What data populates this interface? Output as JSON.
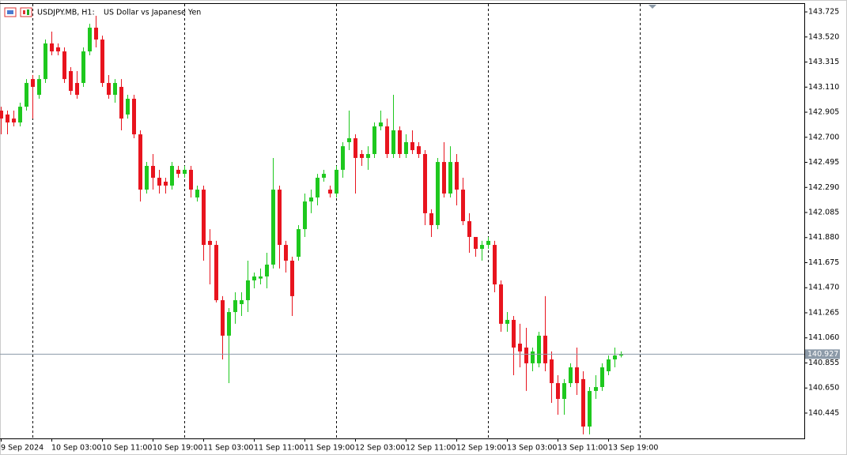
{
  "chart_data": {
    "type": "candlestick",
    "title": "USDJPY.MB, H1:",
    "subtitle": "US Dollar vs Japanese Yen",
    "categories": [
      "9 Sep 2024",
      null,
      null,
      null,
      null,
      null,
      null,
      null,
      "10 Sep 03:00",
      null,
      null,
      null,
      null,
      null,
      null,
      null,
      "10 Sep 11:00",
      null,
      null,
      null,
      null,
      null,
      null,
      null,
      "10 Sep 19:00",
      null,
      null,
      null,
      null,
      null,
      null,
      null,
      "11 Sep 03:00",
      null,
      null,
      null,
      null,
      null,
      null,
      null,
      "11 Sep 11:00",
      null,
      null,
      null,
      null,
      null,
      null,
      null,
      "11 Sep 19:00",
      null,
      null,
      null,
      null,
      null,
      null,
      null,
      "12 Sep 03:00",
      null,
      null,
      null,
      null,
      null,
      null,
      null,
      "12 Sep 11:00",
      null,
      null,
      null,
      null,
      null,
      null,
      null,
      "12 Sep 19:00",
      null,
      null,
      null,
      null,
      null,
      null,
      null,
      "13 Sep 03:00",
      null,
      null,
      null,
      null,
      null,
      null,
      null,
      "13 Sep 11:00",
      null,
      null,
      null,
      null,
      null,
      null,
      null,
      "13 Sep 19:00",
      null,
      null
    ],
    "open": [
      142.918,
      142.886,
      142.853,
      142.821,
      142.95,
      143.176,
      143.047,
      143.176,
      143.467,
      143.435,
      143.402,
      143.241,
      143.144,
      143.144,
      143.402,
      143.596,
      143.499,
      143.144,
      143.047,
      143.112,
      142.886,
      143.015,
      142.724,
      142.272,
      142.466,
      142.369,
      142.337,
      142.305,
      142.434,
      142.401,
      142.434,
      142.208,
      142.272,
      141.853,
      141.82,
      141.368,
      141.078,
      141.271,
      141.336,
      141.368,
      141.53,
      141.545,
      141.562,
      141.659,
      142.272,
      141.82,
      141.691,
      141.723,
      141.949,
      142.175,
      142.208,
      142.369,
      142.272,
      142.24,
      142.434,
      142.66,
      142.692,
      142.563,
      142.531,
      142.563,
      142.789,
      142.789,
      142.563,
      142.757,
      142.563,
      142.66,
      142.627,
      142.563,
      142.079,
      141.982,
      142.498,
      142.24,
      142.498,
      142.272,
      142.014,
      141.885,
      141.788,
      141.82,
      141.82,
      141.497,
      141.175,
      141.207,
      141.013,
      140.981,
      140.852,
      140.852,
      141.078,
      140.884,
      140.69,
      140.561,
      140.69,
      140.819,
      140.723,
      140.335,
      140.626,
      140.658,
      140.787,
      140.884,
      140.916
    ],
    "high": [
      142.95,
      142.918,
      142.918,
      142.983,
      143.176,
      143.209,
      143.209,
      143.499,
      143.564,
      143.467,
      143.435,
      143.273,
      143.241,
      143.435,
      143.628,
      143.693,
      143.531,
      143.209,
      143.176,
      143.176,
      143.047,
      143.047,
      142.757,
      142.498,
      142.563,
      142.434,
      142.369,
      142.498,
      142.466,
      142.466,
      142.466,
      142.305,
      142.305,
      141.949,
      141.853,
      141.401,
      141.304,
      141.433,
      141.433,
      141.691,
      141.594,
      141.627,
      141.756,
      142.531,
      142.305,
      141.853,
      141.723,
      141.982,
      142.24,
      142.272,
      142.401,
      142.434,
      142.305,
      142.466,
      142.66,
      142.918,
      142.724,
      142.595,
      142.627,
      142.821,
      142.918,
      142.853,
      143.047,
      142.789,
      142.724,
      142.757,
      142.66,
      142.595,
      142.111,
      142.531,
      142.66,
      142.627,
      142.563,
      142.369,
      142.079,
      141.885,
      141.853,
      141.885,
      141.853,
      141.53,
      141.271,
      141.239,
      141.175,
      141.142,
      140.981,
      141.11,
      141.401,
      140.949,
      140.755,
      140.723,
      140.852,
      140.981,
      140.787,
      140.658,
      140.755,
      140.852,
      140.916,
      140.981,
      140.949
    ],
    "low": [
      142.724,
      142.724,
      142.789,
      142.789,
      142.918,
      142.853,
      143.015,
      143.144,
      143.37,
      143.37,
      143.144,
      143.047,
      143.015,
      143.112,
      143.37,
      143.435,
      143.112,
      143.015,
      142.983,
      142.757,
      142.853,
      142.692,
      142.175,
      142.24,
      142.272,
      142.24,
      142.24,
      142.272,
      142.369,
      142.369,
      142.208,
      142.175,
      141.691,
      141.497,
      141.35,
      140.884,
      140.69,
      141.175,
      141.239,
      141.271,
      141.465,
      141.497,
      141.465,
      141.627,
      141.627,
      141.594,
      141.239,
      141.691,
      141.885,
      142.079,
      142.143,
      142.337,
      142.208,
      142.208,
      142.369,
      142.595,
      142.24,
      142.466,
      142.434,
      142.531,
      142.757,
      142.531,
      142.531,
      142.531,
      142.531,
      142.563,
      142.531,
      141.982,
      141.885,
      141.949,
      142.208,
      142.208,
      142.143,
      141.982,
      141.756,
      141.723,
      141.691,
      141.788,
      141.433,
      141.11,
      141.11,
      140.755,
      140.819,
      140.626,
      140.787,
      140.819,
      140.787,
      140.529,
      140.432,
      140.432,
      140.658,
      140.593,
      140.271,
      140.271,
      140.561,
      140.626,
      140.755,
      140.819,
      140.9
    ],
    "close": [
      142.853,
      142.821,
      142.821,
      142.95,
      143.144,
      143.112,
      143.176,
      143.467,
      143.402,
      143.402,
      143.176,
      143.079,
      143.047,
      143.402,
      143.596,
      143.499,
      143.144,
      143.047,
      143.144,
      142.853,
      143.015,
      142.724,
      142.272,
      142.466,
      142.369,
      142.305,
      142.305,
      142.466,
      142.401,
      142.434,
      142.272,
      142.272,
      141.82,
      141.82,
      141.368,
      141.078,
      141.271,
      141.368,
      141.368,
      141.53,
      141.562,
      141.562,
      141.659,
      142.272,
      141.82,
      141.691,
      141.401,
      141.949,
      142.175,
      142.208,
      142.369,
      142.401,
      142.24,
      142.434,
      142.627,
      142.692,
      142.531,
      142.531,
      142.563,
      142.789,
      142.821,
      142.563,
      142.757,
      142.563,
      142.66,
      142.595,
      142.563,
      142.079,
      141.982,
      142.498,
      142.24,
      142.498,
      142.272,
      142.014,
      141.885,
      141.788,
      141.82,
      141.853,
      141.497,
      141.175,
      141.207,
      140.981,
      140.949,
      140.852,
      140.949,
      141.078,
      140.852,
      140.69,
      140.561,
      140.69,
      140.819,
      140.69,
      140.335,
      140.626,
      140.658,
      140.819,
      140.884,
      140.916,
      140.927
    ],
    "up_color": "#1ec81e",
    "down_color": "#e8141e",
    "last_price": 140.927,
    "last_price_color": "#8c9aa8",
    "ylim": [
      140.238,
      143.79
    ],
    "yticks": [
      143.725,
      {
        "value": 143.52,
        "label": "143.520"
      },
      143.315,
      {
        "value": 143.11,
        "label": "143.110"
      },
      142.905,
      {
        "value": 142.7,
        "label": "142.700"
      },
      142.495,
      {
        "value": 142.29,
        "label": "142.290"
      },
      142.085,
      {
        "value": 141.88,
        "label": "141.880"
      },
      141.675,
      {
        "value": 141.47,
        "label": "141.470"
      },
      141.265,
      {
        "value": 141.06,
        "label": "141.060"
      },
      140.855,
      {
        "value": 140.65,
        "label": "140.650"
      },
      140.445
    ],
    "grid": false
  }
}
